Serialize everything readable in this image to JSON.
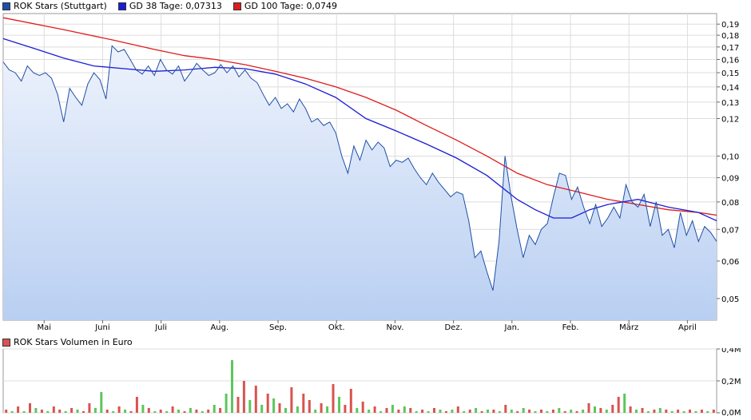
{
  "legend": {
    "price_label": "ROK Stars (Stuttgart)",
    "gd38_label": "GD 38 Tage: 0,07313",
    "gd100_label": "GD 100 Tage: 0,0749",
    "volume_label": "ROK Stars Volumen in Euro"
  },
  "colors": {
    "price": "#1f4fa8",
    "gd38": "#1c1cd6",
    "gd100": "#e01b1b",
    "volume_up": "#5cc65c",
    "volume_down": "#d9534f",
    "grid": "#dddddd"
  },
  "chart_data": [
    {
      "type": "line",
      "scale": "log",
      "x_labels": [
        "Mai",
        "Juni",
        "Juli",
        "Aug.",
        "Sep.",
        "Okt.",
        "Nov.",
        "Dez.",
        "Jan.",
        "Feb.",
        "März",
        "April"
      ],
      "y_ticks": [
        0.05,
        0.06,
        0.07,
        0.08,
        0.09,
        0.1,
        0.12,
        0.13,
        0.14,
        0.15,
        0.16,
        0.17,
        0.18,
        0.19
      ],
      "y_tick_labels": [
        "0,05",
        "0,06",
        "0,07",
        "0,08",
        "0,09",
        "0,10",
        "0,12",
        "0,13",
        "0,14",
        "0,15",
        "0,16",
        "0,17",
        "0,18",
        "0,19"
      ],
      "ylim": [
        0.045,
        0.2
      ],
      "series": [
        {
          "name": "ROK Stars (Stuttgart)",
          "points": [
            [
              0,
              0.158
            ],
            [
              1,
              0.152
            ],
            [
              2,
              0.15
            ],
            [
              3,
              0.144
            ],
            [
              4,
              0.155
            ],
            [
              5,
              0.15
            ],
            [
              6,
              0.148
            ],
            [
              7,
              0.15
            ],
            [
              8,
              0.146
            ],
            [
              9,
              0.135
            ],
            [
              10,
              0.118
            ],
            [
              11,
              0.139
            ],
            [
              12,
              0.133
            ],
            [
              13,
              0.128
            ],
            [
              14,
              0.142
            ],
            [
              15,
              0.15
            ],
            [
              16,
              0.145
            ],
            [
              17,
              0.132
            ],
            [
              18,
              0.171
            ],
            [
              19,
              0.166
            ],
            [
              20,
              0.168
            ],
            [
              21,
              0.16
            ],
            [
              22,
              0.152
            ],
            [
              23,
              0.149
            ],
            [
              24,
              0.155
            ],
            [
              25,
              0.148
            ],
            [
              26,
              0.16
            ],
            [
              27,
              0.152
            ],
            [
              28,
              0.149
            ],
            [
              29,
              0.155
            ],
            [
              30,
              0.144
            ],
            [
              31,
              0.15
            ],
            [
              32,
              0.157
            ],
            [
              33,
              0.152
            ],
            [
              34,
              0.148
            ],
            [
              35,
              0.15
            ],
            [
              36,
              0.156
            ],
            [
              37,
              0.15
            ],
            [
              38,
              0.155
            ],
            [
              39,
              0.147
            ],
            [
              40,
              0.152
            ],
            [
              41,
              0.146
            ],
            [
              42,
              0.143
            ],
            [
              43,
              0.135
            ],
            [
              44,
              0.128
            ],
            [
              45,
              0.133
            ],
            [
              46,
              0.126
            ],
            [
              47,
              0.129
            ],
            [
              48,
              0.124
            ],
            [
              49,
              0.132
            ],
            [
              50,
              0.126
            ],
            [
              51,
              0.118
            ],
            [
              52,
              0.12
            ],
            [
              53,
              0.116
            ],
            [
              54,
              0.118
            ],
            [
              55,
              0.112
            ],
            [
              56,
              0.1
            ],
            [
              57,
              0.092
            ],
            [
              58,
              0.105
            ],
            [
              59,
              0.098
            ],
            [
              60,
              0.108
            ],
            [
              61,
              0.103
            ],
            [
              62,
              0.107
            ],
            [
              63,
              0.104
            ],
            [
              64,
              0.095
            ],
            [
              65,
              0.098
            ],
            [
              66,
              0.097
            ],
            [
              67,
              0.099
            ],
            [
              68,
              0.094
            ],
            [
              69,
              0.09
            ],
            [
              70,
              0.087
            ],
            [
              71,
              0.092
            ],
            [
              72,
              0.088
            ],
            [
              73,
              0.085
            ],
            [
              74,
              0.082
            ],
            [
              75,
              0.084
            ],
            [
              76,
              0.083
            ],
            [
              77,
              0.073
            ],
            [
              78,
              0.061
            ],
            [
              79,
              0.063
            ],
            [
              80,
              0.057
            ],
            [
              81,
              0.052
            ],
            [
              82,
              0.066
            ],
            [
              83,
              0.1
            ],
            [
              84,
              0.082
            ],
            [
              85,
              0.07
            ],
            [
              86,
              0.061
            ],
            [
              87,
              0.068
            ],
            [
              88,
              0.065
            ],
            [
              89,
              0.07
            ],
            [
              90,
              0.072
            ],
            [
              91,
              0.082
            ],
            [
              92,
              0.092
            ],
            [
              93,
              0.091
            ],
            [
              94,
              0.081
            ],
            [
              95,
              0.086
            ],
            [
              96,
              0.078
            ],
            [
              97,
              0.072
            ],
            [
              98,
              0.079
            ],
            [
              99,
              0.071
            ],
            [
              100,
              0.074
            ],
            [
              101,
              0.078
            ],
            [
              102,
              0.074
            ],
            [
              103,
              0.087
            ],
            [
              104,
              0.08
            ],
            [
              105,
              0.078
            ],
            [
              106,
              0.083
            ],
            [
              107,
              0.071
            ],
            [
              108,
              0.08
            ],
            [
              109,
              0.068
            ],
            [
              110,
              0.07
            ],
            [
              111,
              0.064
            ],
            [
              112,
              0.076
            ],
            [
              113,
              0.068
            ],
            [
              114,
              0.073
            ],
            [
              115,
              0.066
            ],
            [
              116,
              0.071
            ],
            [
              117,
              0.069
            ],
            [
              118,
              0.066
            ]
          ]
        },
        {
          "name": "GD 38 Tage",
          "points": [
            [
              0,
              0.177
            ],
            [
              5,
              0.169
            ],
            [
              10,
              0.161
            ],
            [
              15,
              0.155
            ],
            [
              20,
              0.153
            ],
            [
              25,
              0.151
            ],
            [
              30,
              0.152
            ],
            [
              35,
              0.154
            ],
            [
              40,
              0.153
            ],
            [
              45,
              0.149
            ],
            [
              50,
              0.142
            ],
            [
              55,
              0.133
            ],
            [
              60,
              0.12
            ],
            [
              65,
              0.113
            ],
            [
              70,
              0.106
            ],
            [
              75,
              0.099
            ],
            [
              80,
              0.091
            ],
            [
              85,
              0.081
            ],
            [
              88,
              0.077
            ],
            [
              91,
              0.074
            ],
            [
              94,
              0.074
            ],
            [
              97,
              0.077
            ],
            [
              100,
              0.079
            ],
            [
              105,
              0.081
            ],
            [
              110,
              0.078
            ],
            [
              115,
              0.076
            ],
            [
              118,
              0.073
            ]
          ]
        },
        {
          "name": "GD 100 Tage",
          "points": [
            [
              0,
              0.196
            ],
            [
              10,
              0.185
            ],
            [
              18,
              0.176
            ],
            [
              25,
              0.168
            ],
            [
              30,
              0.163
            ],
            [
              35,
              0.16
            ],
            [
              40,
              0.156
            ],
            [
              45,
              0.151
            ],
            [
              50,
              0.146
            ],
            [
              55,
              0.14
            ],
            [
              60,
              0.133
            ],
            [
              65,
              0.125
            ],
            [
              70,
              0.116
            ],
            [
              75,
              0.108
            ],
            [
              80,
              0.1
            ],
            [
              85,
              0.092
            ],
            [
              90,
              0.087
            ],
            [
              95,
              0.084
            ],
            [
              100,
              0.081
            ],
            [
              105,
              0.079
            ],
            [
              110,
              0.077
            ],
            [
              115,
              0.076
            ],
            [
              118,
              0.075
            ]
          ]
        }
      ]
    },
    {
      "type": "bar",
      "title": "ROK Stars Volumen in Euro",
      "y_tick_labels": [
        "0,0M",
        "0,2M",
        "0,4M"
      ],
      "ylim": [
        0,
        0.4
      ],
      "series": [
        {
          "name": "ROK Stars Volumen in Euro",
          "values": [
            0.02,
            0.01,
            0.04,
            0.01,
            0.06,
            0.03,
            0.02,
            0.01,
            0.04,
            0.02,
            0.01,
            0.03,
            0.02,
            0.01,
            0.06,
            0.03,
            0.13,
            0.02,
            0.01,
            0.04,
            0.02,
            0.01,
            0.1,
            0.05,
            0.03,
            0.01,
            0.02,
            0.01,
            0.04,
            0.02,
            0.01,
            0.03,
            0.02,
            0.01,
            0.02,
            0.05,
            0.03,
            0.12,
            0.33,
            0.1,
            0.2,
            0.08,
            0.17,
            0.05,
            0.12,
            0.09,
            0.06,
            0.03,
            0.16,
            0.04,
            0.12,
            0.08,
            0.02,
            0.06,
            0.04,
            0.18,
            0.1,
            0.05,
            0.15,
            0.03,
            0.07,
            0.02,
            0.04,
            0.01,
            0.03,
            0.05,
            0.02,
            0.04,
            0.03,
            0.01,
            0.02,
            0.01,
            0.03,
            0.02,
            0.01,
            0.02,
            0.04,
            0.01,
            0.02,
            0.03,
            0.01,
            0.02,
            0.02,
            0.01,
            0.05,
            0.02,
            0.01,
            0.03,
            0.02,
            0.01,
            0.02,
            0.01,
            0.02,
            0.03,
            0.01,
            0.02,
            0.01,
            0.02,
            0.06,
            0.04,
            0.03,
            0.02,
            0.05,
            0.1,
            0.12,
            0.04,
            0.02,
            0.03,
            0.01,
            0.02,
            0.03,
            0.02,
            0.01,
            0.02,
            0.01,
            0.02,
            0.01,
            0.02,
            0.01,
            0.02
          ],
          "directions": [
            "down",
            "up",
            "down",
            "up",
            "down",
            "up",
            "down",
            "up",
            "down",
            "down",
            "up",
            "down",
            "up",
            "down",
            "down",
            "up",
            "up",
            "down",
            "up",
            "down",
            "up",
            "down",
            "down",
            "up",
            "down",
            "up",
            "down",
            "up",
            "down",
            "up",
            "down",
            "up",
            "down",
            "up",
            "down",
            "up",
            "down",
            "up",
            "up",
            "down",
            "down",
            "up",
            "down",
            "up",
            "down",
            "up",
            "down",
            "up",
            "down",
            "up",
            "down",
            "down",
            "up",
            "down",
            "up",
            "down",
            "up",
            "down",
            "down",
            "up",
            "down",
            "up",
            "down",
            "up",
            "down",
            "up",
            "down",
            "up",
            "down",
            "up",
            "down",
            "up",
            "down",
            "up",
            "down",
            "up",
            "down",
            "up",
            "down",
            "up",
            "down",
            "up",
            "down",
            "up",
            "down",
            "up",
            "down",
            "up",
            "down",
            "up",
            "down",
            "up",
            "down",
            "up",
            "down",
            "up",
            "down",
            "up",
            "down",
            "up",
            "down",
            "up",
            "down",
            "down",
            "up",
            "down",
            "up",
            "down",
            "up",
            "down",
            "up",
            "down",
            "up",
            "down",
            "up",
            "down",
            "up",
            "down",
            "up",
            "down"
          ]
        }
      ]
    }
  ]
}
